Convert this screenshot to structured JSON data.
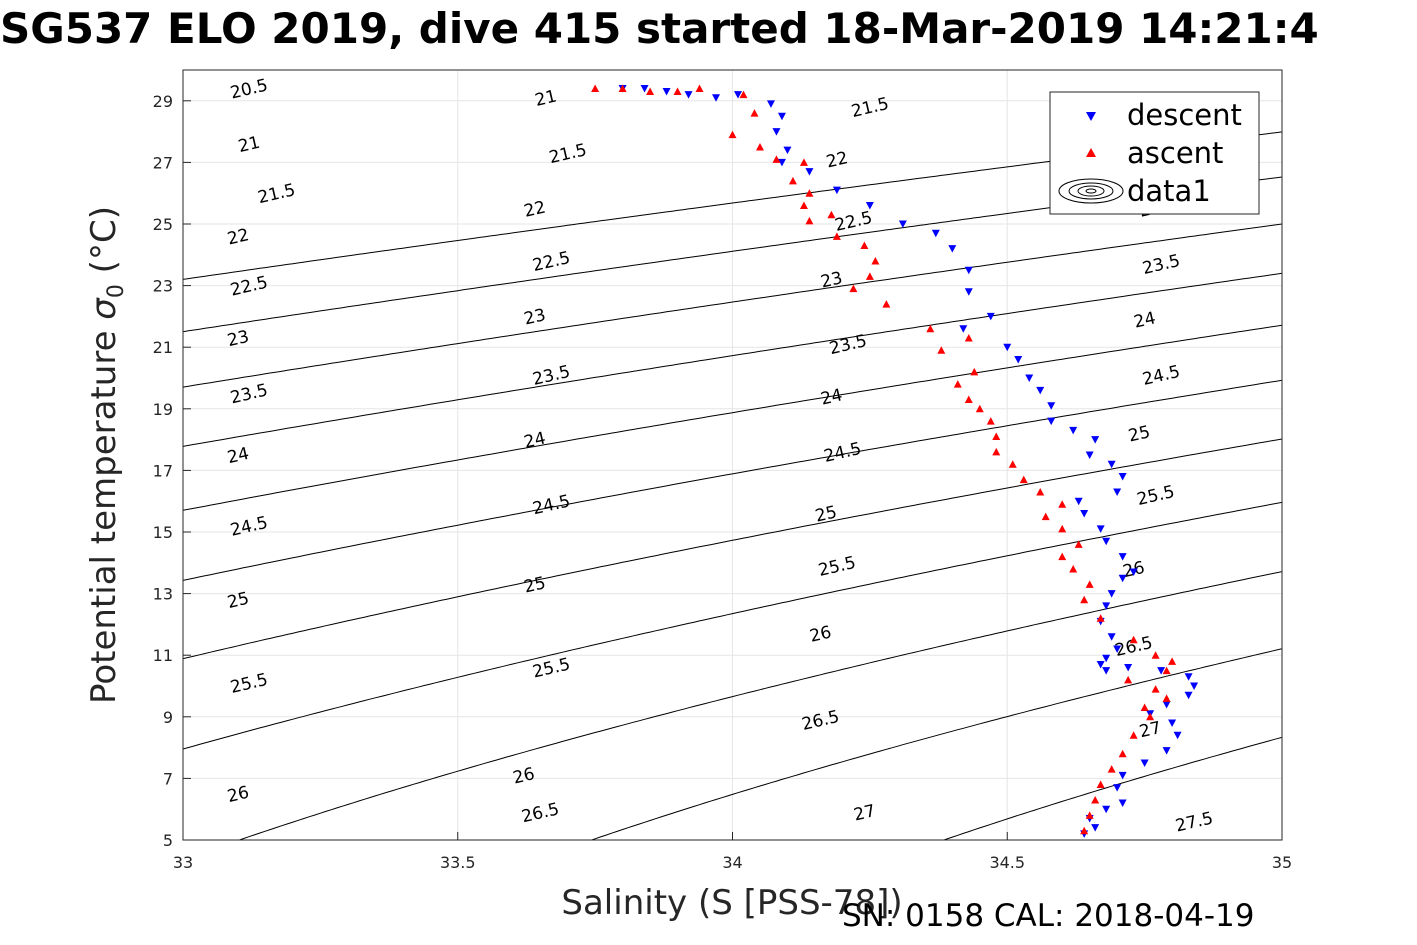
{
  "title": "SG537 ELO 2019, dive 415 started 18-Mar-2019 14:21:4",
  "calibration": "SN: 0158  CAL: 2018-04-19",
  "chart_data": {
    "type": "scatter",
    "xlabel": "Salinity (S [PSS-78])",
    "ylabel": "Potential temperature",
    "ylabel_symbol": "σ",
    "ylabel_sub": "0",
    "ylabel_unit": "(°C)",
    "xlim": [
      33,
      35
    ],
    "ylim": [
      5,
      30
    ],
    "xticks": [
      33,
      33.5,
      34,
      34.5,
      35
    ],
    "xtick_labels": [
      "33",
      "33.5",
      "34",
      "34.5",
      "35"
    ],
    "yticks": [
      5,
      7,
      9,
      11,
      13,
      15,
      17,
      19,
      21,
      23,
      25,
      27,
      29
    ],
    "ytick_labels": [
      "5",
      "7",
      "9",
      "11",
      "13",
      "15",
      "17",
      "19",
      "21",
      "23",
      "25",
      "27",
      "29"
    ],
    "grid": true,
    "legend_position": "top-right",
    "legend": [
      "descent",
      "ascent",
      "data1"
    ],
    "contours": {
      "name": "data1",
      "levels": [
        20.5,
        21,
        21.5,
        22,
        22.5,
        23,
        23.5,
        24,
        24.5,
        25,
        25.5,
        26,
        26.5,
        27,
        27.5
      ],
      "level_labels": [
        "20.5",
        "21",
        "21.5",
        "22",
        "22.5",
        "23",
        "23.5",
        "24",
        "24.5",
        "25",
        "25.5",
        "26",
        "26.5",
        "27",
        "27.5"
      ],
      "labels_at": [
        {
          "level": "20.5",
          "s": 33.12,
          "t": 29.4
        },
        {
          "level": "21",
          "s": 33.12,
          "t": 27.6
        },
        {
          "level": "21.5",
          "s": 33.17,
          "t": 26.0
        },
        {
          "level": "22",
          "s": 33.1,
          "t": 24.6
        },
        {
          "level": "22.5",
          "s": 33.12,
          "t": 23.0
        },
        {
          "level": "23",
          "s": 33.1,
          "t": 21.3
        },
        {
          "level": "23.5",
          "s": 33.12,
          "t": 19.5
        },
        {
          "level": "24",
          "s": 33.1,
          "t": 17.5
        },
        {
          "level": "24.5",
          "s": 33.12,
          "t": 15.2
        },
        {
          "level": "25",
          "s": 33.1,
          "t": 12.8
        },
        {
          "level": "25.5",
          "s": 33.12,
          "t": 10.1
        },
        {
          "level": "26",
          "s": 33.1,
          "t": 6.5
        },
        {
          "level": "21",
          "s": 33.66,
          "t": 29.1
        },
        {
          "level": "21.5",
          "s": 33.7,
          "t": 27.3
        },
        {
          "level": "22",
          "s": 33.64,
          "t": 25.5
        },
        {
          "level": "22.5",
          "s": 33.67,
          "t": 23.8
        },
        {
          "level": "23",
          "s": 33.64,
          "t": 22.0
        },
        {
          "level": "23.5",
          "s": 33.67,
          "t": 20.1
        },
        {
          "level": "24",
          "s": 33.64,
          "t": 18.0
        },
        {
          "level": "24.5",
          "s": 33.67,
          "t": 15.9
        },
        {
          "level": "25",
          "s": 33.64,
          "t": 13.3
        },
        {
          "level": "25.5",
          "s": 33.67,
          "t": 10.6
        },
        {
          "level": "26",
          "s": 33.62,
          "t": 7.1
        },
        {
          "level": "26.5",
          "s": 33.65,
          "t": 5.9
        },
        {
          "level": "21.5",
          "s": 34.25,
          "t": 28.8
        },
        {
          "level": "22",
          "s": 34.19,
          "t": 27.1
        },
        {
          "level": "22.5",
          "s": 34.22,
          "t": 25.1
        },
        {
          "level": "23",
          "s": 34.18,
          "t": 23.2
        },
        {
          "level": "23.5",
          "s": 34.21,
          "t": 21.1
        },
        {
          "level": "24",
          "s": 34.18,
          "t": 19.4
        },
        {
          "level": "24.5",
          "s": 34.2,
          "t": 17.6
        },
        {
          "level": "25",
          "s": 34.17,
          "t": 15.6
        },
        {
          "level": "25.5",
          "s": 34.19,
          "t": 13.9
        },
        {
          "level": "26",
          "s": 34.16,
          "t": 11.7
        },
        {
          "level": "26.5",
          "s": 34.16,
          "t": 8.9
        },
        {
          "level": "27",
          "s": 34.24,
          "t": 5.9
        },
        {
          "level": "23",
          "s": 34.76,
          "t": 25.5
        },
        {
          "level": "23.5",
          "s": 34.78,
          "t": 23.7
        },
        {
          "level": "24",
          "s": 34.75,
          "t": 21.9
        },
        {
          "level": "24.5",
          "s": 34.78,
          "t": 20.1
        },
        {
          "level": "25",
          "s": 34.74,
          "t": 18.2
        },
        {
          "level": "25.5",
          "s": 34.77,
          "t": 16.2
        },
        {
          "level": "26",
          "s": 34.73,
          "t": 13.8
        },
        {
          "level": "26.5",
          "s": 34.73,
          "t": 11.3
        },
        {
          "level": "27",
          "s": 34.76,
          "t": 8.6
        },
        {
          "level": "27.5",
          "s": 34.84,
          "t": 5.6
        }
      ]
    },
    "series": [
      {
        "name": "descent",
        "marker": "triangle-down",
        "color": "#0000ff",
        "x": [
          33.8,
          33.84,
          33.88,
          33.92,
          33.97,
          34.01,
          34.07,
          34.09,
          34.08,
          34.1,
          34.09,
          34.14,
          34.19,
          34.25,
          34.31,
          34.37,
          34.4,
          34.43,
          34.43,
          34.47,
          34.42,
          34.5,
          34.52,
          34.54,
          34.56,
          34.58,
          34.58,
          34.62,
          34.66,
          34.65,
          34.69,
          34.71,
          34.7,
          34.63,
          34.64,
          34.67,
          34.68,
          34.71,
          34.73,
          34.71,
          34.69,
          34.68,
          34.67,
          34.69,
          34.7,
          34.68,
          34.67,
          34.68,
          34.72,
          34.78,
          34.83,
          34.84,
          34.83,
          34.79,
          34.76,
          34.8,
          34.81,
          34.79,
          34.75,
          34.71,
          34.7,
          34.71,
          34.68,
          34.65,
          34.66,
          34.64
        ],
        "y": [
          29.4,
          29.4,
          29.3,
          29.2,
          29.1,
          29.2,
          28.9,
          28.5,
          28.0,
          27.4,
          27.0,
          26.7,
          26.1,
          25.6,
          25.0,
          24.7,
          24.2,
          23.5,
          22.8,
          22.0,
          21.6,
          21.0,
          20.6,
          20.0,
          19.6,
          19.1,
          18.6,
          18.3,
          18.0,
          17.5,
          17.2,
          16.8,
          16.3,
          16.0,
          15.6,
          15.1,
          14.7,
          14.2,
          13.7,
          13.5,
          13.0,
          12.6,
          12.1,
          11.6,
          11.2,
          10.9,
          10.7,
          10.5,
          10.6,
          10.5,
          10.3,
          10.0,
          9.7,
          9.4,
          9.1,
          8.8,
          8.4,
          7.9,
          7.5,
          7.1,
          6.7,
          6.2,
          6.0,
          5.7,
          5.4,
          5.2
        ]
      },
      {
        "name": "ascent",
        "marker": "triangle-up",
        "color": "#ff0000",
        "x": [
          33.75,
          33.8,
          33.85,
          33.9,
          33.94,
          34.02,
          34.04,
          34.0,
          34.05,
          34.08,
          34.13,
          34.11,
          34.14,
          34.13,
          34.18,
          34.14,
          34.19,
          34.24,
          34.26,
          34.25,
          34.22,
          34.28,
          34.36,
          34.43,
          34.38,
          34.44,
          34.41,
          34.43,
          34.45,
          34.47,
          34.48,
          34.48,
          34.51,
          34.53,
          34.56,
          34.6,
          34.57,
          34.6,
          34.63,
          34.6,
          34.62,
          34.65,
          34.64,
          34.67,
          34.73,
          34.77,
          34.8,
          34.79,
          34.72,
          34.77,
          34.79,
          34.75,
          34.76,
          34.73,
          34.71,
          34.69,
          34.67,
          34.66,
          34.65,
          34.64
        ],
        "y": [
          29.4,
          29.4,
          29.3,
          29.3,
          29.4,
          29.2,
          28.6,
          27.9,
          27.5,
          27.1,
          27.0,
          26.4,
          26.0,
          25.6,
          25.3,
          25.1,
          24.6,
          24.3,
          23.8,
          23.3,
          22.9,
          22.4,
          21.6,
          21.3,
          20.9,
          20.2,
          19.8,
          19.3,
          19.0,
          18.6,
          18.1,
          17.6,
          17.2,
          16.7,
          16.3,
          15.9,
          15.5,
          15.1,
          14.6,
          14.2,
          13.8,
          13.3,
          12.8,
          12.2,
          11.5,
          11.0,
          10.8,
          10.5,
          10.2,
          9.9,
          9.6,
          9.3,
          9.0,
          8.4,
          7.8,
          7.3,
          6.8,
          6.3,
          5.8,
          5.3
        ]
      }
    ]
  }
}
